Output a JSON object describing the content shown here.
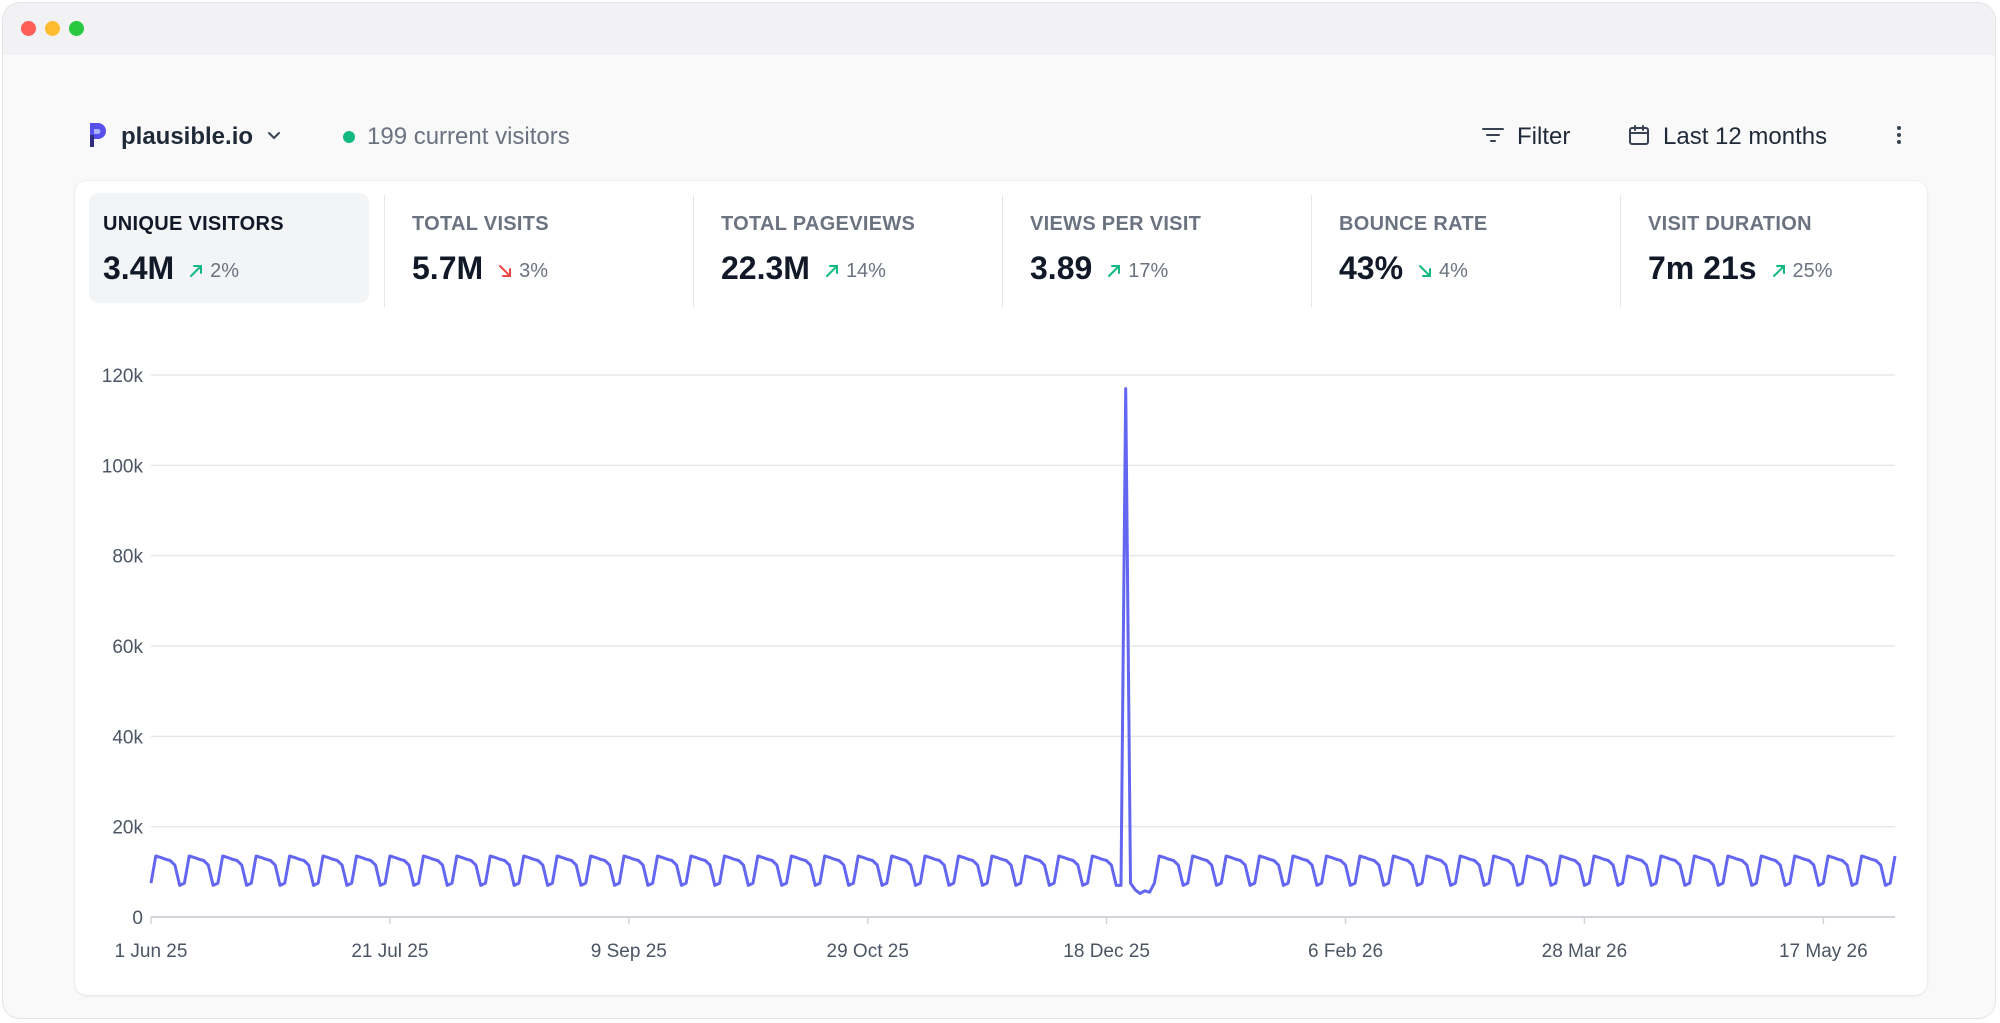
{
  "window": {
    "controls": [
      "close",
      "minimize",
      "zoom"
    ]
  },
  "site": {
    "name": "plausible.io",
    "logo_icon": "plausible-logo-icon",
    "dropdown_icon": "chevron-down-icon"
  },
  "live": {
    "text": "199 current visitors",
    "dot_color": "#10b981"
  },
  "toolbar": {
    "filter_label": "Filter",
    "filter_icon": "filter-lines-icon",
    "period_label": "Last 12 months",
    "period_icon": "calendar-icon",
    "more_icon": "vertical-dots-icon"
  },
  "metrics": [
    {
      "label": "UNIQUE VISITORS",
      "value": "3.4M",
      "change": "2%",
      "direction": "up",
      "active": true
    },
    {
      "label": "TOTAL VISITS",
      "value": "5.7M",
      "change": "3%",
      "direction": "down",
      "active": false
    },
    {
      "label": "TOTAL PAGEVIEWS",
      "value": "22.3M",
      "change": "14%",
      "direction": "up",
      "active": false
    },
    {
      "label": "VIEWS PER VISIT",
      "value": "3.89",
      "change": "17%",
      "direction": "up",
      "active": false
    },
    {
      "label": "BOUNCE RATE",
      "value": "43%",
      "change": "4%",
      "direction": "down",
      "active": false
    },
    {
      "label": "VISIT DURATION",
      "value": "7m 21s",
      "change": "25%",
      "direction": "up",
      "active": false
    }
  ],
  "colors": {
    "up": "#10b981",
    "down_bad": "#ef4444",
    "down_good": "#10b981",
    "line": "#6366f1",
    "grid": "#e5e7eb",
    "axis_text": "#4b5563",
    "logo": "#5850ec"
  },
  "chart_data": {
    "type": "line",
    "title": "",
    "xlabel": "",
    "ylabel": "",
    "ylim": [
      0,
      120000
    ],
    "y_ticks": [
      "0",
      "20k",
      "40k",
      "60k",
      "80k",
      "100k",
      "120k"
    ],
    "y_tick_values": [
      0,
      20000,
      40000,
      60000,
      80000,
      100000,
      120000
    ],
    "x_ticks": [
      "1 Jun 25",
      "21 Jul 25",
      "9 Sep 25",
      "29 Oct 25",
      "18 Dec 25",
      "6 Feb 26",
      "28 Mar 26",
      "17 May 26"
    ],
    "x_tick_days": [
      0,
      50,
      100,
      150,
      200,
      250,
      300,
      350
    ],
    "x_range_days": [
      0,
      365
    ],
    "series": [
      {
        "name": "",
        "weekly_pattern": [
          7500,
          13500,
          13200,
          12800,
          12500,
          11500,
          7000
        ],
        "anomalies": [
          {
            "day": 203,
            "value": 7000
          },
          {
            "day": 204,
            "value": 117000
          },
          {
            "day": 205,
            "value": 7500
          },
          {
            "day": 206,
            "value": 6000
          },
          {
            "day": 207,
            "value": 5200
          },
          {
            "day": 208,
            "value": 5800
          },
          {
            "day": 209,
            "value": 5500
          }
        ]
      }
    ],
    "grid": true,
    "legend": "none"
  }
}
